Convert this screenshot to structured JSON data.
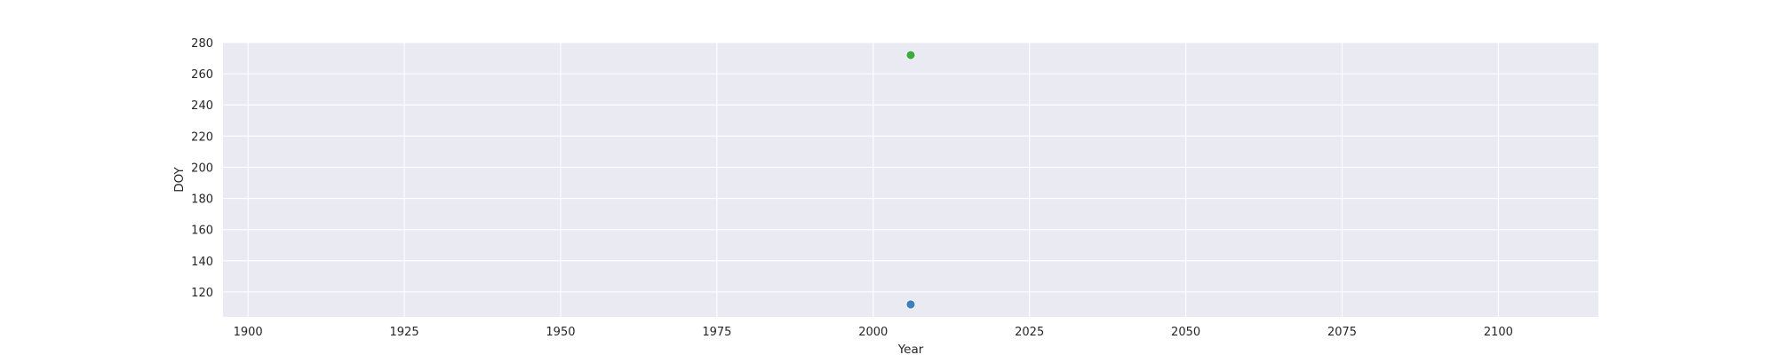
{
  "chart_data": {
    "type": "scatter",
    "title": "",
    "xlabel": "Year",
    "ylabel": "DOY",
    "xlim": [
      1896,
      2116
    ],
    "ylim": [
      104,
      280
    ],
    "xticks": [
      1900,
      1925,
      1950,
      1975,
      2000,
      2025,
      2050,
      2075,
      2100
    ],
    "yticks": [
      120,
      140,
      160,
      180,
      200,
      220,
      240,
      260,
      280
    ],
    "grid": true,
    "legend": "none",
    "colors": {
      "background": "#eaeaf2",
      "grid": "#ffffff",
      "text": "#262626"
    },
    "series": [
      {
        "x": [
          2006
        ],
        "y": [
          112
        ],
        "color": "#3c80c0"
      },
      {
        "x": [
          2006
        ],
        "y": [
          272
        ],
        "color": "#3faa3f"
      }
    ]
  }
}
